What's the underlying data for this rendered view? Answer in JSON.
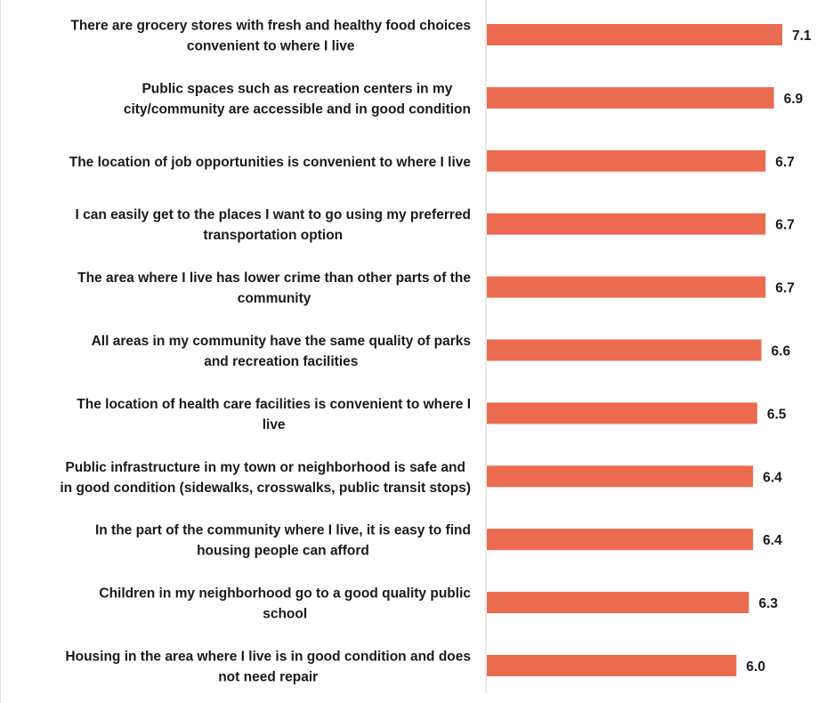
{
  "chart_data": {
    "type": "bar",
    "orientation": "horizontal",
    "categories": [
      [
        "There are grocery stores with fresh and healthy food choices",
        "convenient to where I live"
      ],
      [
        "Public spaces such as recreation centers in my",
        "city/community are accessible and in good condition"
      ],
      [
        "The location of job opportunities is convenient to where I live"
      ],
      [
        "I can easily get to the places I want to go using my preferred",
        "transportation option"
      ],
      [
        "The area where I live has lower crime than other parts of the",
        "community"
      ],
      [
        "All areas in my community have the same quality of parks",
        "and recreation facilities"
      ],
      [
        "The location of health care facilities is convenient to where I",
        "live"
      ],
      [
        "Public infrastructure in my town or neighborhood is safe and",
        "in good condition (sidewalks, crosswalks, public transit stops)"
      ],
      [
        "In the part of the community where I live, it is easy to find",
        "housing people can afford"
      ],
      [
        "Children in my neighborhood go to a good quality public",
        "school"
      ],
      [
        "Housing in the area where I live is in good condition and does",
        "not need repair"
      ]
    ],
    "values": [
      7.1,
      6.9,
      6.7,
      6.7,
      6.7,
      6.6,
      6.5,
      6.4,
      6.4,
      6.3,
      6.0
    ],
    "value_labels": [
      "7.1",
      "6.9",
      "6.7",
      "6.7",
      "6.7",
      "6.6",
      "6.5",
      "6.4",
      "6.4",
      "6.3",
      "6.0"
    ],
    "xlim": [
      0,
      7.1
    ],
    "bar_color": "#eb6b50",
    "grid": false,
    "legend": "none",
    "title": "",
    "xlabel": "",
    "ylabel": ""
  }
}
